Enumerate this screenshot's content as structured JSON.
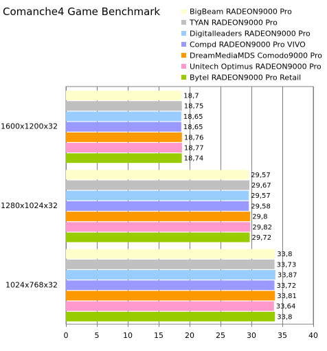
{
  "chart_data": {
    "type": "bar",
    "orientation": "horizontal",
    "title": "Comanche4 Game Benchmark",
    "categories": [
      "1600x1200x32",
      "1280x1024x32",
      "1024x768x32"
    ],
    "series": [
      {
        "name": "BigBeam RADEON9000 Pro",
        "color": "#ffffcc",
        "values": [
          18.7,
          29.57,
          33.8
        ],
        "labels": [
          "18,7",
          "29,57",
          "33,8"
        ]
      },
      {
        "name": "TYAN RADEON9000 Pro",
        "color": "#c0c0c0",
        "values": [
          18.75,
          29.67,
          33.73
        ],
        "labels": [
          "18,75",
          "29,67",
          "33,73"
        ]
      },
      {
        "name": "Digitalleaders RADEON9000 Pro",
        "color": "#99ccff",
        "values": [
          18.65,
          29.57,
          33.87
        ],
        "labels": [
          "18,65",
          "29,57",
          "33,87"
        ]
      },
      {
        "name": "Compd RADEON9000 Pro VIVO",
        "color": "#9999ff",
        "values": [
          18.65,
          29.58,
          33.72
        ],
        "labels": [
          "18,65",
          "29,58",
          "33,72"
        ]
      },
      {
        "name": "DreamMediaMDS Comodo9000 Pro",
        "color": "#ff9900",
        "values": [
          18.76,
          29.8,
          33.81
        ],
        "labels": [
          "18,76",
          "29,8",
          "33,81"
        ]
      },
      {
        "name": "Unitech Optimus RADEON9000 Pro",
        "color": "#ff99cc",
        "values": [
          18.77,
          29.82,
          33.64
        ],
        "labels": [
          "18,77",
          "29,82",
          "33,64"
        ]
      },
      {
        "name": "Bytel RADEON9000 Pro Retail",
        "color": "#99cc00",
        "values": [
          18.74,
          29.72,
          33.8
        ],
        "labels": [
          "18,74",
          "29,72",
          "33,8"
        ]
      }
    ],
    "xlim": [
      0,
      40
    ],
    "xticks": [
      0,
      5,
      10,
      15,
      20,
      25,
      30,
      35,
      40
    ],
    "xlabel": "",
    "ylabel": "",
    "grid": true,
    "legend_position": "top-right"
  }
}
